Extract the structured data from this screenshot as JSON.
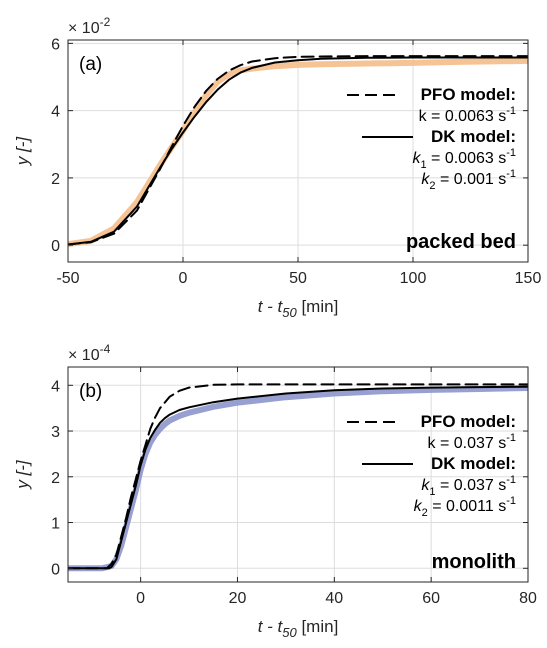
{
  "chart_data": [
    {
      "type": "line",
      "panel_label": "(a)",
      "scale_label": "× 10",
      "scale_exp": "-2",
      "xlim": [
        -50,
        150
      ],
      "ylim": [
        -0.005,
        0.061
      ],
      "x_ticks": [
        "-50",
        "0",
        "50",
        "100",
        "150"
      ],
      "x_tick_values": [
        -50,
        0,
        50,
        100,
        150
      ],
      "y_ticks": [
        "0",
        "2",
        "4",
        "6"
      ],
      "y_tick_values": [
        0,
        0.02,
        0.04,
        0.06
      ],
      "xlabel_main": "t - t",
      "xlabel_sub": "50",
      "xlabel_unit": " [min]",
      "ylabel": "y [-]",
      "grid": true,
      "legend_position": "right",
      "sample_label": "packed bed",
      "legend": {
        "pfo_name": "PFO model:",
        "pfo_k": "k = 0.0063 s",
        "dk_name": "DK model:",
        "dk_k1": "k",
        "dk_k1_sub": "1",
        "dk_k1_val": " = 0.0063 s",
        "dk_k2": "k",
        "dk_k2_sub": "2",
        "dk_k2_val": " = 0.001 s",
        "inv": "-1"
      },
      "series": [
        {
          "name": "experiment",
          "color": "#F5BC8A",
          "x": [
            -50,
            -40,
            -30,
            -20,
            -10,
            -5,
            0,
            5,
            10,
            15,
            20,
            25,
            30,
            40,
            50,
            60,
            80,
            100,
            120,
            150
          ],
          "y": [
            0.0003,
            0.0013,
            0.005,
            0.0128,
            0.0238,
            0.029,
            0.034,
            0.0395,
            0.0445,
            0.0485,
            0.0508,
            0.052,
            0.0525,
            0.0532,
            0.0536,
            0.0538,
            0.054,
            0.0542,
            0.0545,
            0.0548
          ]
        },
        {
          "name": "PFO model",
          "color": "#000000",
          "dash": true,
          "x": [
            -50,
            -40,
            -30,
            -20,
            -10,
            -5,
            0,
            5,
            10,
            15,
            20,
            25,
            30,
            40,
            50,
            60,
            80,
            100,
            120,
            150
          ],
          "y": [
            0.0002,
            0.0009,
            0.0034,
            0.0103,
            0.0226,
            0.0292,
            0.0355,
            0.0411,
            0.0458,
            0.0494,
            0.0519,
            0.0535,
            0.0546,
            0.0556,
            0.056,
            0.0561,
            0.0562,
            0.0562,
            0.0562,
            0.0562
          ]
        },
        {
          "name": "DK model",
          "color": "#000000",
          "x": [
            -50,
            -40,
            -30,
            -20,
            -10,
            -5,
            0,
            5,
            10,
            15,
            20,
            25,
            30,
            40,
            50,
            60,
            80,
            100,
            120,
            150
          ],
          "y": [
            0.0002,
            0.001,
            0.004,
            0.0115,
            0.023,
            0.0285,
            0.0335,
            0.0382,
            0.0425,
            0.0462,
            0.0492,
            0.0513,
            0.0527,
            0.0543,
            0.055,
            0.0554,
            0.0557,
            0.0558,
            0.0558,
            0.0558
          ]
        }
      ]
    },
    {
      "type": "line",
      "panel_label": "(b)",
      "scale_label": "× 10",
      "scale_exp": "-4",
      "xlim": [
        -15,
        80
      ],
      "ylim": [
        -3e-05,
        0.00044
      ],
      "x_ticks": [
        "0",
        "20",
        "40",
        "60",
        "80"
      ],
      "x_tick_values": [
        0,
        20,
        40,
        60,
        80
      ],
      "y_ticks": [
        "0",
        "1",
        "2",
        "3",
        "4"
      ],
      "y_tick_values": [
        0,
        0.0001,
        0.0002,
        0.0003,
        0.0004
      ],
      "xlabel_main": "t - t",
      "xlabel_sub": "50",
      "xlabel_unit": " [min]",
      "ylabel": "y [-]",
      "grid": true,
      "legend_position": "right",
      "sample_label": "monolith",
      "legend": {
        "pfo_name": "PFO model:",
        "pfo_k": "k = 0.037 s",
        "dk_name": "DK model:",
        "dk_k1": "k",
        "dk_k1_sub": "1",
        "dk_k1_val": " = 0.037 s",
        "dk_k2": "k",
        "dk_k2_sub": "2",
        "dk_k2_val": " = 0.0011 s",
        "inv": "-1"
      },
      "series": [
        {
          "name": "experiment",
          "color": "#8C96CC",
          "x": [
            -15,
            -8,
            -6,
            -5,
            -4,
            -3,
            -2,
            -1,
            0,
            1,
            2,
            3,
            4,
            5,
            6,
            8,
            10,
            15,
            20,
            30,
            40,
            50,
            60,
            70,
            80
          ],
          "y": [
            0,
            0,
            5e-06,
            2e-05,
            5e-05,
            9e-05,
            0.00013,
            0.00017,
            0.000215,
            0.00025,
            0.000275,
            0.000292,
            0.000305,
            0.000315,
            0.000323,
            0.000333,
            0.00034,
            0.000353,
            0.000362,
            0.000374,
            0.000382,
            0.000387,
            0.00039,
            0.000392,
            0.000394
          ]
        },
        {
          "name": "PFO model",
          "color": "#000000",
          "dash": true,
          "x": [
            -15,
            -7,
            -6,
            -5,
            -4,
            -3,
            -2,
            -1,
            0,
            1,
            2,
            3,
            4,
            6,
            8,
            10,
            15,
            20,
            30,
            40,
            60,
            80
          ],
          "y": [
            0,
            0,
            1e-05,
            3e-05,
            7e-05,
            0.00011,
            0.000155,
            0.000195,
            0.000235,
            0.00027,
            0.000305,
            0.00033,
            0.00035,
            0.000375,
            0.000388,
            0.000395,
            0.000401,
            0.000402,
            0.000402,
            0.000402,
            0.000402,
            0.000402
          ]
        },
        {
          "name": "DK model",
          "color": "#000000",
          "x": [
            -15,
            -6.5,
            -6,
            -5,
            -4,
            -3,
            -2,
            -1,
            0,
            1,
            2,
            3,
            4,
            5,
            6,
            8,
            10,
            15,
            20,
            30,
            40,
            50,
            60,
            70,
            80
          ],
          "y": [
            0,
            0,
            3e-06,
            2e-05,
            6e-05,
            0.0001,
            0.00014,
            0.00018,
            0.000225,
            0.00026,
            0.000285,
            0.000303,
            0.000318,
            0.000328,
            0.000336,
            0.000346,
            0.000352,
            0.000363,
            0.000371,
            0.000382,
            0.000389,
            0.000393,
            0.000395,
            0.000396,
            0.000397
          ]
        }
      ]
    }
  ]
}
